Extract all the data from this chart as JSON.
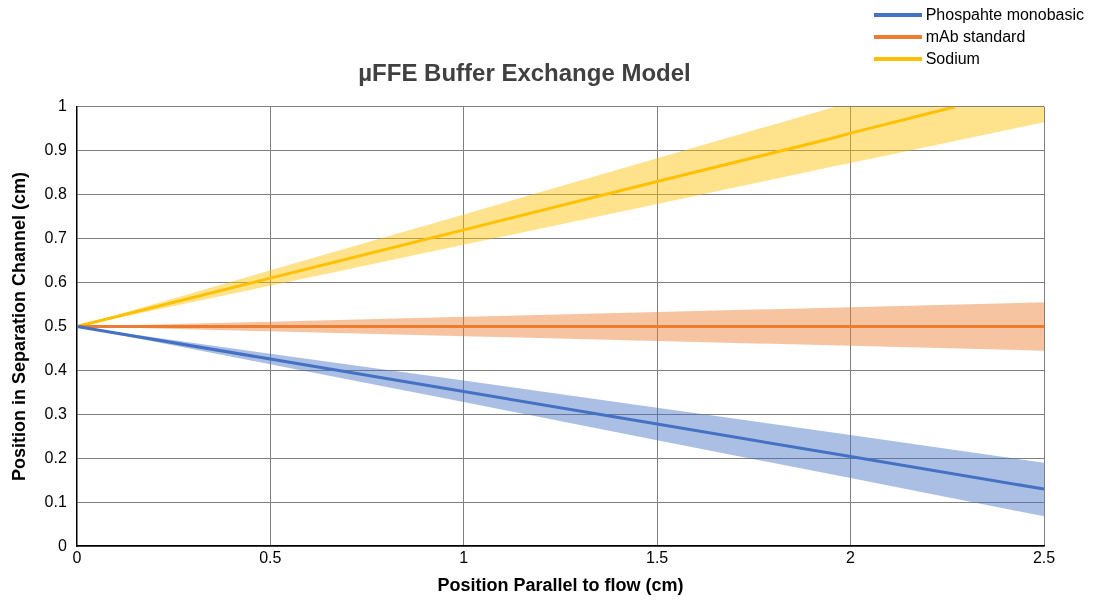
{
  "chart_data": {
    "type": "line",
    "title": "µFFE Buffer Exchange Model",
    "xlabel": "Position Parallel to flow (cm)",
    "ylabel": "Position in Separation Channel (cm)",
    "xlim": [
      0,
      2.5
    ],
    "xticks": [
      0,
      0.5,
      1,
      1.5,
      2,
      2.5
    ],
    "ylim": [
      0,
      1
    ],
    "yticks": [
      0,
      0.1,
      0.2,
      0.3,
      0.4,
      0.5,
      0.6,
      0.7,
      0.8,
      0.9,
      1
    ],
    "grid": true,
    "legend": "top right",
    "marker": "none",
    "line_style": "solid",
    "series": [
      {
        "name": "Phospahte monobasic",
        "color": "#4472c4",
        "x": [
          0,
          0.5,
          1,
          1.5,
          2,
          2.5
        ],
        "values": [
          0.5,
          0.426,
          0.352,
          0.278,
          0.204,
          0.13
        ],
        "upper": [
          0.5,
          0.438,
          0.377,
          0.315,
          0.253,
          0.19
        ],
        "lower": [
          0.5,
          0.414,
          0.328,
          0.241,
          0.155,
          0.068
        ]
      },
      {
        "name": "mAb standard",
        "color": "#ed7d31",
        "x": [
          0,
          0.5,
          1,
          1.5,
          2,
          2.5
        ],
        "values": [
          0.5,
          0.5,
          0.5,
          0.5,
          0.5,
          0.5
        ],
        "upper": [
          0.5,
          0.511,
          0.522,
          0.533,
          0.544,
          0.555
        ],
        "lower": [
          0.5,
          0.489,
          0.478,
          0.467,
          0.456,
          0.445
        ]
      },
      {
        "name": "Sodium",
        "color": "#ffc000",
        "x": [
          0,
          0.5,
          1,
          1.5,
          1.96,
          2,
          2.27,
          2.5
        ],
        "values": [
          0.5,
          0.61,
          0.72,
          0.83,
          0.93,
          0.94,
          1.0,
          null
        ],
        "upper": [
          0.5,
          0.628,
          0.755,
          0.883,
          1.0,
          1.0,
          1.0,
          1.0
        ],
        "lower": [
          0.5,
          0.593,
          0.686,
          0.779,
          0.865,
          0.872,
          0.922,
          0.965
        ]
      }
    ]
  }
}
